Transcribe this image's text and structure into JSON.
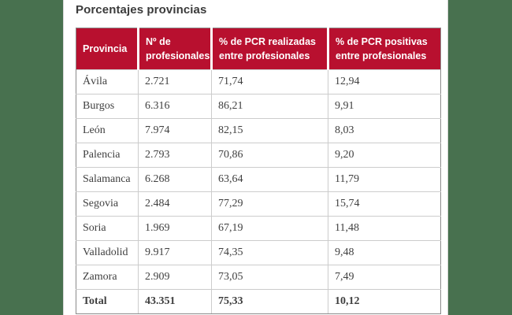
{
  "title": "Porcentajes provincias",
  "colors": {
    "page_bg": "#48714f",
    "panel_bg": "#ffffff",
    "header_bg": "#b8102f",
    "header_text": "#ffffff",
    "body_text": "#3f3f3f",
    "title_text": "#3b3b3b",
    "outer_border": "#8b8b8b",
    "inner_border": "#cccccc"
  },
  "table": {
    "columns": [
      "Provincia",
      "Nº de profesionales",
      "% de PCR realizadas entre profesionales",
      "% de PCR positivas entre profesionales"
    ],
    "rows": [
      [
        "Ávila",
        "2.721",
        "71,74",
        "12,94"
      ],
      [
        "Burgos",
        "6.316",
        "86,21",
        "9,91"
      ],
      [
        "León",
        "7.974",
        "82,15",
        "8,03"
      ],
      [
        "Palencia",
        "2.793",
        "70,86",
        "9,20"
      ],
      [
        "Salamanca",
        "6.268",
        "63,64",
        "11,79"
      ],
      [
        "Segovia",
        "2.484",
        "77,29",
        "15,74"
      ],
      [
        "Soria",
        "1.969",
        "67,19",
        "11,48"
      ],
      [
        "Valladolid",
        "9.917",
        "74,35",
        "9,48"
      ],
      [
        "Zamora",
        "2.909",
        "73,05",
        "7,49"
      ]
    ],
    "total": [
      "Total",
      "43.351",
      "75,33",
      "10,12"
    ]
  },
  "chart_data": {
    "type": "table",
    "title": "Porcentajes provincias",
    "columns": [
      "Provincia",
      "Nº de profesionales",
      "% de PCR realizadas entre profesionales",
      "% de PCR positivas entre profesionales"
    ],
    "rows": [
      [
        "Ávila",
        "2.721",
        "71,74",
        "12,94"
      ],
      [
        "Burgos",
        "6.316",
        "86,21",
        "9,91"
      ],
      [
        "León",
        "7.974",
        "82,15",
        "8,03"
      ],
      [
        "Palencia",
        "2.793",
        "70,86",
        "9,20"
      ],
      [
        "Salamanca",
        "6.268",
        "63,64",
        "11,79"
      ],
      [
        "Segovia",
        "2.484",
        "77,29",
        "15,74"
      ],
      [
        "Soria",
        "1.969",
        "67,19",
        "11,48"
      ],
      [
        "Valladolid",
        "9.917",
        "74,35",
        "9,48"
      ],
      [
        "Zamora",
        "2.909",
        "73,05",
        "7,49"
      ],
      [
        "Total",
        "43.351",
        "75,33",
        "10,12"
      ]
    ]
  }
}
